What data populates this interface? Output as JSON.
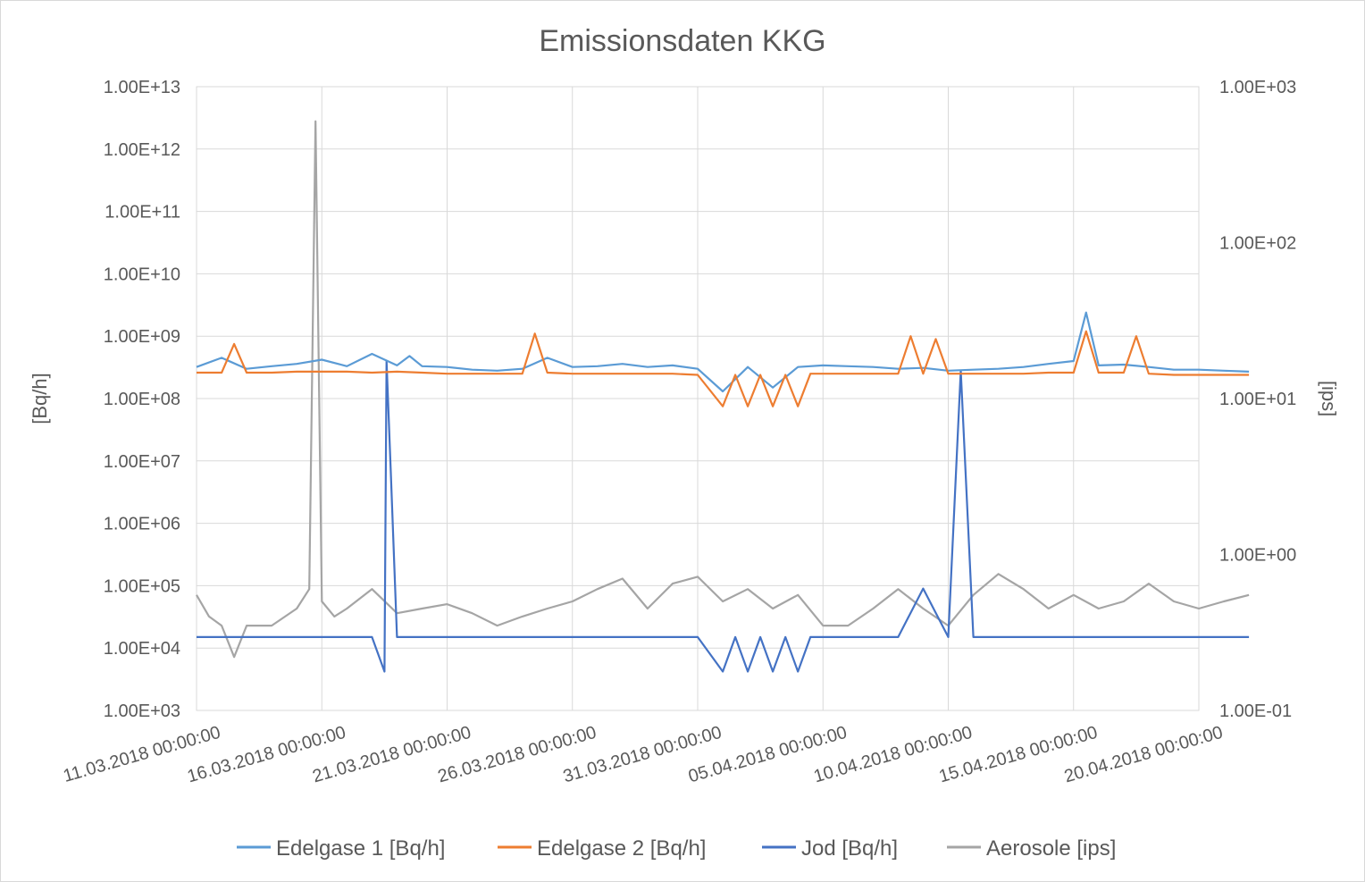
{
  "chart_data": {
    "type": "line",
    "title": "Emissionsdaten KKG",
    "ylabel": "[Bq/h]",
    "y2label": "[ips]",
    "y_scale": "log",
    "y2_scale": "log",
    "ylim": [
      1000,
      10000000000000
    ],
    "y2lim": [
      0.1,
      1000
    ],
    "ytick_labels": [
      "1.00E+03",
      "1.00E+04",
      "1.00E+05",
      "1.00E+06",
      "1.00E+07",
      "1.00E+08",
      "1.00E+09",
      "1.00E+10",
      "1.00E+11",
      "1.00E+12",
      "1.00E+13"
    ],
    "y2tick_labels": [
      "1.00E-01",
      "1.00E+00",
      "1.00E+01",
      "1.00E+02",
      "1.00E+03"
    ],
    "xtick_labels": [
      "11.03.2018 00:00:00",
      "16.03.2018 00:00:00",
      "21.03.2018 00:00:00",
      "26.03.2018 00:00:00",
      "31.03.2018 00:00:00",
      "05.04.2018 00:00:00",
      "10.04.2018 00:00:00",
      "15.04.2018 00:00:00",
      "20.04.2018 00:00:00"
    ],
    "xlim": [
      "2018-03-11",
      "2018-04-20"
    ],
    "grid": true,
    "legend_position": "bottom",
    "series": [
      {
        "name": "Edelgase 1 [Bq/h]",
        "axis": "left",
        "color": "#5b9bd5",
        "points": [
          [
            "2018-03-11",
            320000000.0
          ],
          [
            "2018-03-12",
            450000000.0
          ],
          [
            "2018-03-13",
            300000000.0
          ],
          [
            "2018-03-14",
            330000000.0
          ],
          [
            "2018-03-15",
            360000000.0
          ],
          [
            "2018-03-16",
            420000000.0
          ],
          [
            "2018-03-17",
            330000000.0
          ],
          [
            "2018-03-18",
            520000000.0
          ],
          [
            "2018-03-19",
            340000000.0
          ],
          [
            "2018-03-19T12",
            480000000.0
          ],
          [
            "2018-03-20",
            330000000.0
          ],
          [
            "2018-03-21",
            320000000.0
          ],
          [
            "2018-03-22",
            290000000.0
          ],
          [
            "2018-03-23",
            280000000.0
          ],
          [
            "2018-03-24",
            300000000.0
          ],
          [
            "2018-03-25",
            450000000.0
          ],
          [
            "2018-03-26",
            320000000.0
          ],
          [
            "2018-03-27",
            330000000.0
          ],
          [
            "2018-03-28",
            360000000.0
          ],
          [
            "2018-03-29",
            320000000.0
          ],
          [
            "2018-03-30",
            340000000.0
          ],
          [
            "2018-03-31",
            300000000.0
          ],
          [
            "2018-04-01",
            130000000.0
          ],
          [
            "2018-04-02",
            320000000.0
          ],
          [
            "2018-04-03",
            150000000.0
          ],
          [
            "2018-04-04",
            320000000.0
          ],
          [
            "2018-04-05",
            340000000.0
          ],
          [
            "2018-04-06",
            330000000.0
          ],
          [
            "2018-04-07",
            320000000.0
          ],
          [
            "2018-04-08",
            300000000.0
          ],
          [
            "2018-04-09",
            310000000.0
          ],
          [
            "2018-04-10",
            280000000.0
          ],
          [
            "2018-04-11",
            290000000.0
          ],
          [
            "2018-04-12",
            300000000.0
          ],
          [
            "2018-04-13",
            320000000.0
          ],
          [
            "2018-04-14",
            360000000.0
          ],
          [
            "2018-04-15",
            400000000.0
          ],
          [
            "2018-04-15T12",
            2400000000.0
          ],
          [
            "2018-04-16",
            340000000.0
          ],
          [
            "2018-04-17",
            350000000.0
          ],
          [
            "2018-04-18",
            320000000.0
          ],
          [
            "2018-04-19",
            290000000.0
          ],
          [
            "2018-04-20",
            290000000.0
          ],
          [
            "2018-04-21",
            280000000.0
          ],
          [
            "2018-04-22",
            270000000.0
          ]
        ]
      },
      {
        "name": "Edelgase 2 [Bq/h]",
        "axis": "left",
        "color": "#ed7d31",
        "points": [
          [
            "2018-03-11",
            260000000.0
          ],
          [
            "2018-03-12",
            260000000.0
          ],
          [
            "2018-03-12T12",
            750000000.0
          ],
          [
            "2018-03-13",
            260000000.0
          ],
          [
            "2018-03-14",
            260000000.0
          ],
          [
            "2018-03-15",
            270000000.0
          ],
          [
            "2018-03-16",
            270000000.0
          ],
          [
            "2018-03-17",
            270000000.0
          ],
          [
            "2018-03-18",
            260000000.0
          ],
          [
            "2018-03-19",
            270000000.0
          ],
          [
            "2018-03-20",
            260000000.0
          ],
          [
            "2018-03-21",
            250000000.0
          ],
          [
            "2018-03-22",
            250000000.0
          ],
          [
            "2018-03-23",
            250000000.0
          ],
          [
            "2018-03-24",
            250000000.0
          ],
          [
            "2018-03-24T12",
            1100000000.0
          ],
          [
            "2018-03-25",
            260000000.0
          ],
          [
            "2018-03-26",
            250000000.0
          ],
          [
            "2018-03-27",
            250000000.0
          ],
          [
            "2018-03-28",
            250000000.0
          ],
          [
            "2018-03-29",
            250000000.0
          ],
          [
            "2018-03-30",
            250000000.0
          ],
          [
            "2018-03-31",
            240000000.0
          ],
          [
            "2018-04-01",
            75000000.0
          ],
          [
            "2018-04-01T12",
            240000000.0
          ],
          [
            "2018-04-02",
            75000000.0
          ],
          [
            "2018-04-02T12",
            240000000.0
          ],
          [
            "2018-04-03",
            75000000.0
          ],
          [
            "2018-04-03T12",
            240000000.0
          ],
          [
            "2018-04-04",
            75000000.0
          ],
          [
            "2018-04-04T12",
            250000000.0
          ],
          [
            "2018-04-05",
            250000000.0
          ],
          [
            "2018-04-06",
            250000000.0
          ],
          [
            "2018-04-07",
            250000000.0
          ],
          [
            "2018-04-08",
            250000000.0
          ],
          [
            "2018-04-08T12",
            1000000000.0
          ],
          [
            "2018-04-09",
            250000000.0
          ],
          [
            "2018-04-09T12",
            900000000.0
          ],
          [
            "2018-04-10",
            250000000.0
          ],
          [
            "2018-04-11",
            250000000.0
          ],
          [
            "2018-04-12",
            250000000.0
          ],
          [
            "2018-04-13",
            250000000.0
          ],
          [
            "2018-04-14",
            260000000.0
          ],
          [
            "2018-04-15",
            260000000.0
          ],
          [
            "2018-04-15T12",
            1200000000.0
          ],
          [
            "2018-04-16",
            260000000.0
          ],
          [
            "2018-04-17",
            260000000.0
          ],
          [
            "2018-04-17T12",
            1000000000.0
          ],
          [
            "2018-04-18",
            250000000.0
          ],
          [
            "2018-04-19",
            240000000.0
          ],
          [
            "2018-04-20",
            240000000.0
          ],
          [
            "2018-04-21",
            240000000.0
          ],
          [
            "2018-04-22",
            240000000.0
          ]
        ]
      },
      {
        "name": "Jod [Bq/h]",
        "axis": "left",
        "color": "#4472c4",
        "points": [
          [
            "2018-03-11",
            15000.0
          ],
          [
            "2018-03-12",
            15000.0
          ],
          [
            "2018-03-13",
            15000.0
          ],
          [
            "2018-03-14",
            15000.0
          ],
          [
            "2018-03-15",
            15000.0
          ],
          [
            "2018-03-16",
            15000.0
          ],
          [
            "2018-03-17",
            15000.0
          ],
          [
            "2018-03-18",
            15000.0
          ],
          [
            "2018-03-18T12",
            4200.0
          ],
          [
            "2018-03-18T14",
            400000000.0
          ],
          [
            "2018-03-18T18",
            7000000.0
          ],
          [
            "2018-03-19",
            15000.0
          ],
          [
            "2018-03-20",
            15000.0
          ],
          [
            "2018-03-21",
            15000.0
          ],
          [
            "2018-03-22",
            15000.0
          ],
          [
            "2018-03-23",
            15000.0
          ],
          [
            "2018-03-24",
            15000.0
          ],
          [
            "2018-03-25",
            15000.0
          ],
          [
            "2018-03-26",
            15000.0
          ],
          [
            "2018-03-27",
            15000.0
          ],
          [
            "2018-03-28",
            15000.0
          ],
          [
            "2018-03-29",
            15000.0
          ],
          [
            "2018-03-30",
            15000.0
          ],
          [
            "2018-03-31",
            15000.0
          ],
          [
            "2018-04-01",
            4200.0
          ],
          [
            "2018-04-01T12",
            15000.0
          ],
          [
            "2018-04-02",
            4200.0
          ],
          [
            "2018-04-02T12",
            15000.0
          ],
          [
            "2018-04-03",
            4200.0
          ],
          [
            "2018-04-03T12",
            15000.0
          ],
          [
            "2018-04-04",
            4200.0
          ],
          [
            "2018-04-04T12",
            15000.0
          ],
          [
            "2018-04-05",
            15000.0
          ],
          [
            "2018-04-06",
            15000.0
          ],
          [
            "2018-04-07",
            15000.0
          ],
          [
            "2018-04-08",
            15000.0
          ],
          [
            "2018-04-09",
            90000.0
          ],
          [
            "2018-04-10",
            15000.0
          ],
          [
            "2018-04-10T12",
            280000000.0
          ],
          [
            "2018-04-11",
            15000.0
          ],
          [
            "2018-04-12",
            15000.0
          ],
          [
            "2018-04-13",
            15000.0
          ],
          [
            "2018-04-14",
            15000.0
          ],
          [
            "2018-04-15",
            15000.0
          ],
          [
            "2018-04-16",
            15000.0
          ],
          [
            "2018-04-17",
            15000.0
          ],
          [
            "2018-04-18",
            15000.0
          ],
          [
            "2018-04-19",
            15000.0
          ],
          [
            "2018-04-20",
            15000.0
          ],
          [
            "2018-04-21",
            15000.0
          ],
          [
            "2018-04-22",
            15000.0
          ]
        ]
      },
      {
        "name": "Aerosole [ips]",
        "axis": "right",
        "color": "#a5a5a5",
        "points": [
          [
            "2018-03-11",
            0.55
          ],
          [
            "2018-03-11T12",
            0.4
          ],
          [
            "2018-03-12",
            0.35
          ],
          [
            "2018-03-12T12",
            0.22
          ],
          [
            "2018-03-13",
            0.35
          ],
          [
            "2018-03-14",
            0.35
          ],
          [
            "2018-03-15",
            0.45
          ],
          [
            "2018-03-15T12",
            0.6
          ],
          [
            "2018-03-15T18",
            600
          ],
          [
            "2018-03-16",
            0.5
          ],
          [
            "2018-03-16T12",
            0.4
          ],
          [
            "2018-03-17",
            0.45
          ],
          [
            "2018-03-18",
            0.6
          ],
          [
            "2018-03-19",
            0.42
          ],
          [
            "2018-03-20",
            0.45
          ],
          [
            "2018-03-21",
            0.48
          ],
          [
            "2018-03-22",
            0.42
          ],
          [
            "2018-03-23",
            0.35
          ],
          [
            "2018-03-24",
            0.4
          ],
          [
            "2018-03-25",
            0.45
          ],
          [
            "2018-03-26",
            0.5
          ],
          [
            "2018-03-27",
            0.6
          ],
          [
            "2018-03-28",
            0.7
          ],
          [
            "2018-03-29",
            0.45
          ],
          [
            "2018-03-30",
            0.65
          ],
          [
            "2018-03-31",
            0.72
          ],
          [
            "2018-04-01",
            0.5
          ],
          [
            "2018-04-02",
            0.6
          ],
          [
            "2018-04-03",
            0.45
          ],
          [
            "2018-04-04",
            0.55
          ],
          [
            "2018-04-05",
            0.35
          ],
          [
            "2018-04-06",
            0.35
          ],
          [
            "2018-04-07",
            0.45
          ],
          [
            "2018-04-08",
            0.6
          ],
          [
            "2018-04-09",
            0.45
          ],
          [
            "2018-04-10",
            0.35
          ],
          [
            "2018-04-11",
            0.55
          ],
          [
            "2018-04-12",
            0.75
          ],
          [
            "2018-04-13",
            0.6
          ],
          [
            "2018-04-14",
            0.45
          ],
          [
            "2018-04-15",
            0.55
          ],
          [
            "2018-04-16",
            0.45
          ],
          [
            "2018-04-17",
            0.5
          ],
          [
            "2018-04-18",
            0.65
          ],
          [
            "2018-04-19",
            0.5
          ],
          [
            "2018-04-20",
            0.45
          ],
          [
            "2018-04-21",
            0.5
          ],
          [
            "2018-04-22",
            0.55
          ]
        ]
      }
    ]
  }
}
